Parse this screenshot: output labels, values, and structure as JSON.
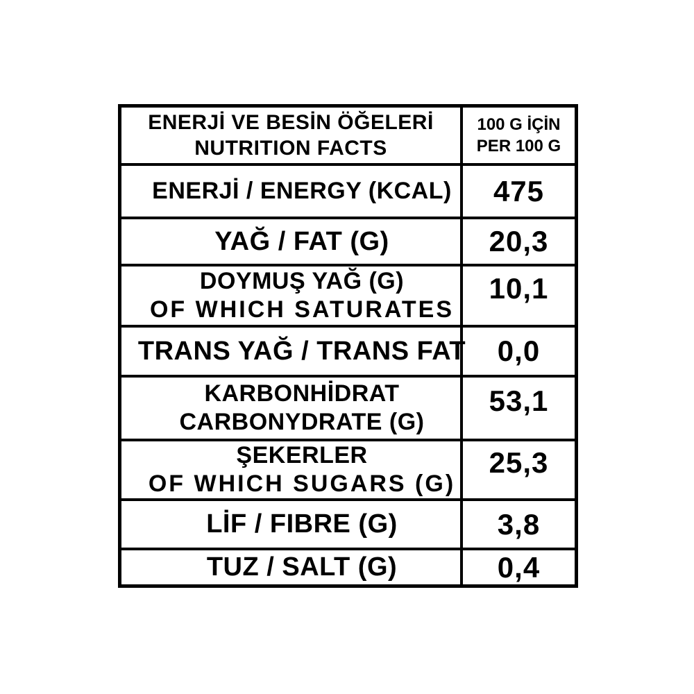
{
  "header": {
    "title_line1": "ENERJİ VE BESİN ÖĞELERİ",
    "title_line2": "NUTRITION FACTS",
    "unit_line1": "100 G İÇİN",
    "unit_line2": "PER 100 G"
  },
  "rows": [
    {
      "label": "ENERJİ / ENERGY (KCAL)",
      "value": "475"
    },
    {
      "label": "YAĞ / FAT (G)",
      "value": "20,3"
    },
    {
      "label": "DOYMUŞ YAĞ (G)",
      "label2": "OF WHICH SATURATES",
      "value": "10,1"
    },
    {
      "label": "TRANS YAĞ / TRANS FAT",
      "value": "0,0"
    },
    {
      "label": "KARBONHİDRAT",
      "label2": "CARBONYDRATE (G)",
      "value": "53,1"
    },
    {
      "label": "ŞEKERLER",
      "label2": "OF WHICH SUGARS (G)",
      "value": "25,3"
    },
    {
      "label": "LİF / FIBRE (G)",
      "value": "3,8"
    },
    {
      "label": "TUZ / SALT (G)",
      "value": "0,4"
    }
  ],
  "colors": {
    "border": "#000000",
    "text": "#000000",
    "background": "#ffffff"
  }
}
